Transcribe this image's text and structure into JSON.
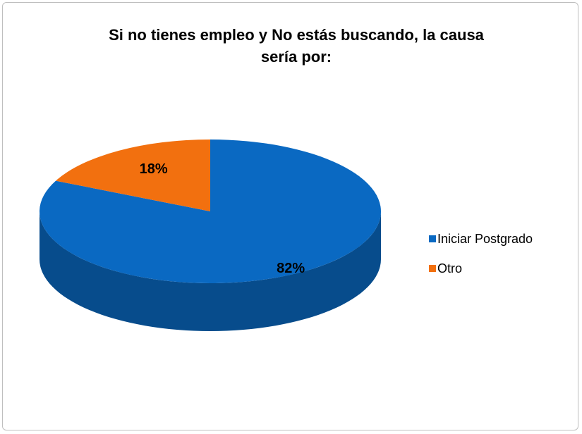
{
  "chart_data": {
    "type": "pie",
    "title": "Si no tienes empleo y No estás buscando, la causa sería por:",
    "categories": [
      "Iniciar Postgrado",
      "Otro"
    ],
    "values": [
      82,
      18
    ],
    "value_labels": [
      "82%",
      "18%"
    ],
    "colors": [
      "#0a69c2",
      "#f2700f"
    ],
    "legend": "right"
  }
}
